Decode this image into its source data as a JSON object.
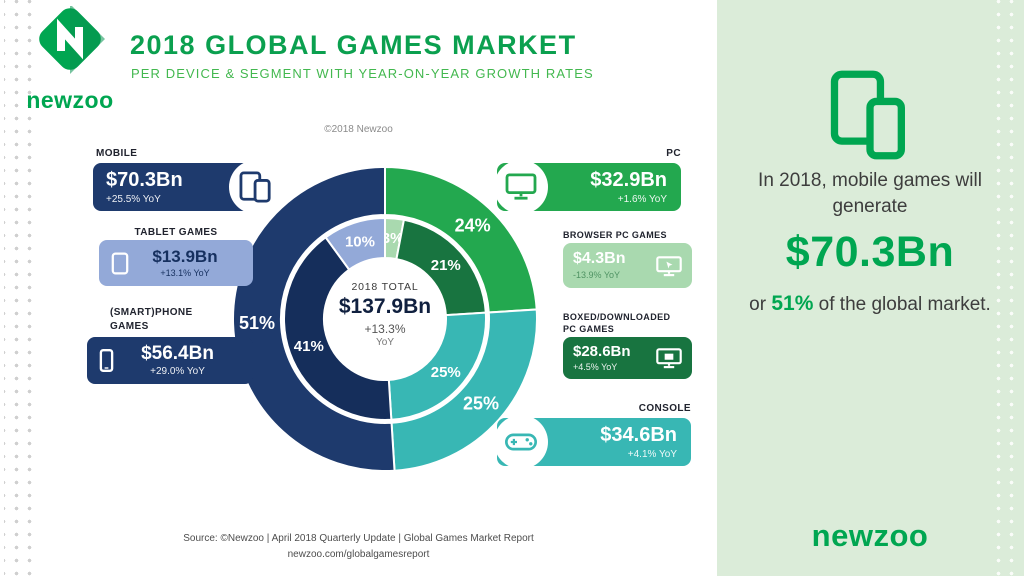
{
  "logo": {
    "wordmark": "newzoo"
  },
  "header": {
    "title": "2018 GLOBAL GAMES MARKET",
    "subtitle": "PER DEVICE & SEGMENT WITH YEAR-ON-YEAR GROWTH RATES",
    "copyright": "©2018 Newzoo"
  },
  "chart_data": {
    "type": "pie",
    "variant": "two-ring-donut",
    "title": "2018 Global Games Market per Device & Segment",
    "total": {
      "label": "2018 TOTAL",
      "value": "$137.9Bn",
      "growth": "+13.3%",
      "unit": "YoY"
    },
    "center": {
      "label": "2018 TOTAL",
      "value": "$137.9Bn",
      "growth": "+13.3%",
      "unit": "YoY"
    },
    "rings": [
      {
        "name": "devices",
        "r_outer": 152,
        "r_inner": 104,
        "label_r": 128,
        "label_size": 18,
        "segments": [
          {
            "name": "PC",
            "pct": 24,
            "label": "24%",
            "value_bn": 32.9,
            "yoy": "+1.6%",
            "color": "#23a84f"
          },
          {
            "name": "Console",
            "pct": 25,
            "label": "25%",
            "value_bn": 34.6,
            "yoy": "+4.1%",
            "color": "#38b7b4"
          },
          {
            "name": "Mobile",
            "pct": 51,
            "label": "51%",
            "value_bn": 70.3,
            "yoy": "+25.5%",
            "color": "#1e3a6d"
          }
        ]
      },
      {
        "name": "segments",
        "r_outer": 101,
        "r_inner": 61,
        "label_r": 81,
        "label_size": 15,
        "segments": [
          {
            "name": "Browser PC Games",
            "pct": 3,
            "label": "3%",
            "value_bn": 4.3,
            "yoy": "-13.9%",
            "color": "#a9d9af"
          },
          {
            "name": "Boxed Downloaded PC Games",
            "pct": 21,
            "label": "21%",
            "value_bn": 28.6,
            "yoy": "+4.5%",
            "color": "#187440"
          },
          {
            "name": "Console",
            "pct": 25,
            "label": "25%",
            "value_bn": 34.6,
            "yoy": "+4.1%",
            "color": "#38b7b4"
          },
          {
            "name": "Smartphone Games",
            "pct": 41,
            "label": "41%",
            "value_bn": 56.4,
            "yoy": "+29.0%",
            "color": "#152e5b"
          },
          {
            "name": "Tablet Games",
            "pct": 10,
            "label": "10%",
            "value_bn": 13.9,
            "yoy": "+13.1%",
            "color": "#93a9d8"
          }
        ]
      }
    ]
  },
  "callouts": {
    "mobile": {
      "category": "MOBILE",
      "value": "$70.3Bn",
      "growth": "+25.5% YoY"
    },
    "tablet": {
      "category": "TABLET GAMES",
      "value": "$13.9Bn",
      "growth": "+13.1% YoY"
    },
    "smartphone": {
      "category": "(SMART)PHONE GAMES",
      "value": "$56.4Bn",
      "growth": "+29.0% YoY"
    },
    "pc": {
      "category": "PC",
      "value": "$32.9Bn",
      "growth": "+1.6% YoY"
    },
    "browser": {
      "category": "BROWSER PC GAMES",
      "value": "$4.3Bn",
      "growth": "-13.9% YoY"
    },
    "boxed": {
      "category": "BOXED/DOWNLOADED PC GAMES",
      "value": "$28.6Bn",
      "growth": "+4.5% YoY"
    },
    "console": {
      "category": "CONSOLE",
      "value": "$34.6Bn",
      "growth": "+4.1% YoY"
    }
  },
  "sidebar": {
    "line1": "In 2018, mobile games will generate",
    "highlight_value": "$70.3Bn",
    "line2_before": "or ",
    "line2_pct": "51%",
    "line2_after": " of the global market.",
    "wordmark": "newzoo"
  },
  "footer": {
    "source": "Source: ©Newzoo | April 2018 Quarterly Update | Global Games Market Report",
    "url": "newzoo.com/globalgamesreport"
  },
  "icons": {
    "newzoo-logo-icon": "green diamond with white N",
    "mobile-devices-icon": "tablet + phone",
    "tablet-icon": "tablet outline",
    "phone-icon": "smartphone outline",
    "monitor-icon": "desktop monitor",
    "browser-monitor-icon": "monitor with cursor",
    "boxed-monitor-icon": "monitor with box",
    "gamepad-icon": "game controller",
    "panel-devices-icon": "tablet + phone"
  },
  "colors": {
    "brand_green": "#00a651",
    "navy": "#1e3a6d",
    "dark_navy": "#152e5b",
    "periwinkle": "#93a9d8",
    "green": "#23a84f",
    "light_green": "#a9d9af",
    "dark_green": "#187440",
    "teal": "#38b7b4",
    "panel_bg": "#dbecd9"
  }
}
